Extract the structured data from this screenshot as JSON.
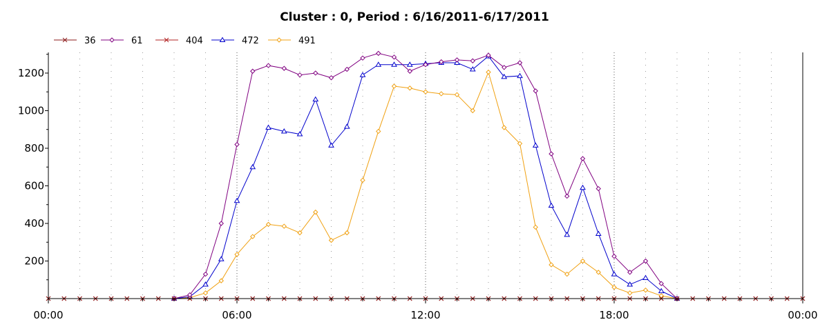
{
  "chart_data": {
    "type": "line",
    "title": "Cluster : 0, Period : 6/16/2011-6/17/2011",
    "xlabel": "",
    "ylabel": "",
    "x_range_hours": [
      0,
      24
    ],
    "x_ticks": [
      {
        "hour": 0,
        "label": "00:00"
      },
      {
        "hour": 6,
        "label": "06:00"
      },
      {
        "hour": 12,
        "label": "12:00"
      },
      {
        "hour": 18,
        "label": "18:00"
      },
      {
        "hour": 24,
        "label": "00:00"
      }
    ],
    "ylim": [
      0,
      1310
    ],
    "y_ticks": [
      200,
      400,
      600,
      800,
      1000,
      1200
    ],
    "grid": {
      "vertical_dotted": true,
      "horizontal": false
    },
    "legend_position": "top-left",
    "x_step_hours": 0.5,
    "series": [
      {
        "name": "36",
        "color": "#8b1a1a",
        "marker": "x",
        "values": [
          0,
          0,
          0,
          0,
          0,
          0,
          0,
          0,
          0,
          0,
          0,
          0,
          0,
          0,
          0,
          0,
          0,
          0,
          0,
          0,
          0,
          0,
          0,
          0,
          0,
          0,
          0,
          0,
          0,
          0,
          0,
          0,
          0,
          0,
          0,
          0,
          0,
          0,
          0,
          0,
          0,
          0,
          0,
          0,
          0,
          0,
          0,
          0,
          0
        ]
      },
      {
        "name": "61",
        "color": "#800080",
        "marker": "diamond",
        "values": [
          null,
          null,
          null,
          null,
          null,
          null,
          null,
          null,
          0,
          20,
          130,
          400,
          820,
          1210,
          1240,
          1225,
          1190,
          1200,
          1175,
          1220,
          1280,
          1305,
          1285,
          1210,
          1245,
          1260,
          1270,
          1265,
          1295,
          1230,
          1255,
          1105,
          770,
          545,
          745,
          585,
          225,
          140,
          200,
          80,
          0,
          null,
          null,
          null,
          null,
          null,
          null,
          null,
          null
        ]
      },
      {
        "name": "404",
        "color": "#b22222",
        "marker": "x",
        "values": [
          0,
          0,
          0,
          0,
          0,
          0,
          0,
          0,
          0,
          0,
          0,
          0,
          0,
          0,
          0,
          0,
          0,
          0,
          0,
          0,
          0,
          0,
          0,
          0,
          0,
          0,
          0,
          0,
          0,
          0,
          0,
          0,
          0,
          0,
          0,
          0,
          0,
          0,
          0,
          0,
          0,
          0,
          0,
          0,
          0,
          0,
          0,
          0,
          0
        ]
      },
      {
        "name": "472",
        "color": "#0000cc",
        "marker": "triangle",
        "values": [
          null,
          null,
          null,
          null,
          null,
          null,
          null,
          null,
          0,
          10,
          75,
          210,
          520,
          700,
          910,
          890,
          875,
          1060,
          815,
          915,
          1190,
          1245,
          1245,
          1245,
          1250,
          1255,
          1255,
          1220,
          1290,
          1180,
          1185,
          815,
          495,
          340,
          590,
          345,
          130,
          75,
          110,
          40,
          0,
          null,
          null,
          null,
          null,
          null,
          null,
          null,
          null
        ]
      },
      {
        "name": "491",
        "color": "#f0a010",
        "marker": "diamond",
        "values": [
          null,
          null,
          null,
          null,
          null,
          null,
          null,
          null,
          0,
          5,
          30,
          95,
          235,
          330,
          395,
          385,
          350,
          460,
          310,
          350,
          630,
          890,
          1130,
          1120,
          1100,
          1090,
          1085,
          1000,
          1205,
          910,
          825,
          380,
          180,
          130,
          200,
          140,
          60,
          30,
          45,
          15,
          0,
          null,
          null,
          null,
          null,
          null,
          null,
          null,
          null
        ]
      }
    ]
  }
}
